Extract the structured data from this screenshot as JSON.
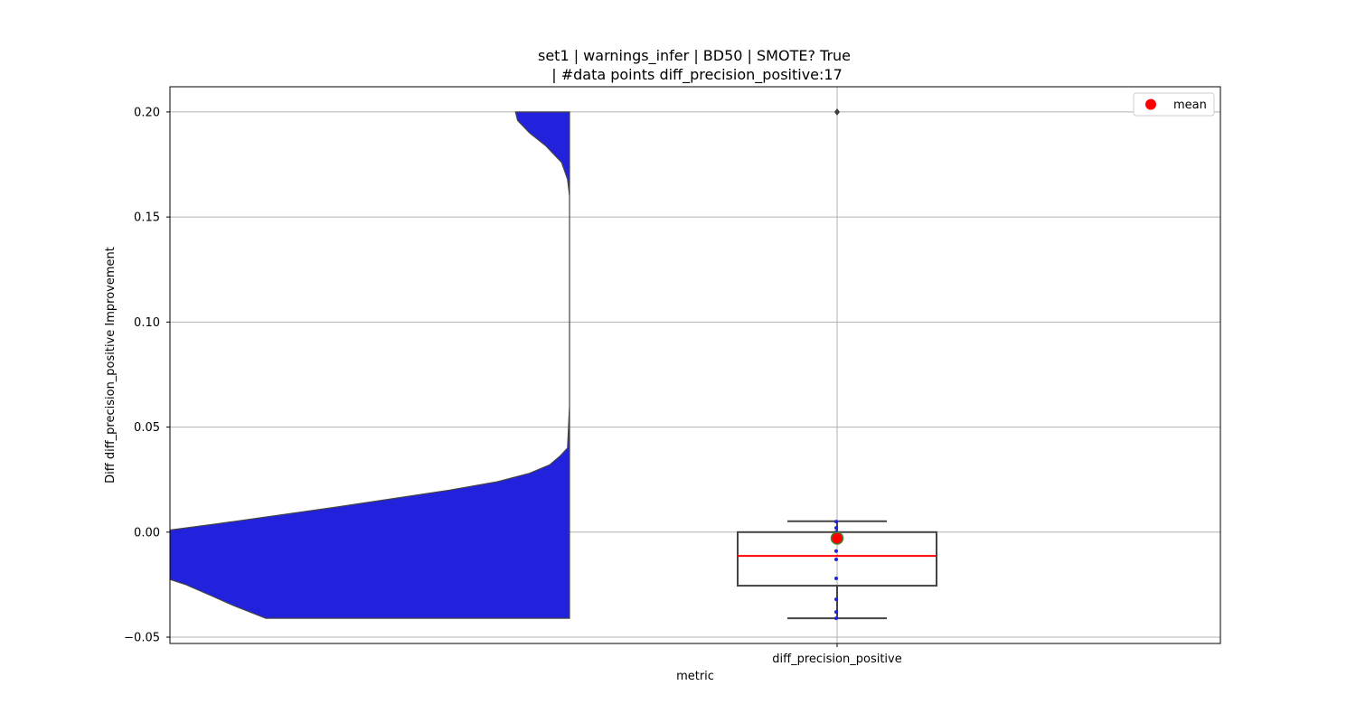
{
  "chart_data": {
    "type": "violin+box",
    "title_line1": "set1 | warnings_infer | BD50 | SMOTE? True",
    "title_line2": "| #data points diff_precision_positive:17",
    "xlabel": "metric",
    "ylabel": "Diff diff_precision_positive Improvement",
    "categories": [
      "diff_precision_positive"
    ],
    "ylim": [
      -0.053,
      0.212
    ],
    "yticks": [
      -0.05,
      0.0,
      0.05,
      0.1,
      0.15,
      0.2
    ],
    "ytick_labels": [
      "−0.05",
      "0.00",
      "0.05",
      "0.10",
      "0.15",
      "0.20"
    ],
    "grid": true,
    "legend": {
      "placement": "top-right",
      "entries": [
        "mean"
      ]
    },
    "violin": {
      "color": "#2222dd",
      "profile": [
        [
          -0.041,
          0.76
        ],
        [
          -0.035,
          0.84
        ],
        [
          -0.03,
          0.9
        ],
        [
          -0.025,
          0.96
        ],
        [
          -0.0225,
          1.0
        ],
        [
          -0.015,
          1.0
        ],
        [
          -0.01,
          1.0
        ],
        [
          -0.005,
          1.0
        ],
        [
          0.0,
          1.0
        ],
        [
          0.001,
          1.0
        ],
        [
          0.004,
          0.88
        ],
        [
          0.008,
          0.73
        ],
        [
          0.012,
          0.58
        ],
        [
          0.016,
          0.44
        ],
        [
          0.02,
          0.3
        ],
        [
          0.024,
          0.18
        ],
        [
          0.028,
          0.1
        ],
        [
          0.032,
          0.05
        ],
        [
          0.036,
          0.025
        ],
        [
          0.04,
          0.005
        ],
        [
          0.06,
          0.0
        ],
        [
          0.16,
          0.0
        ],
        [
          0.168,
          0.005
        ],
        [
          0.176,
          0.02
        ],
        [
          0.184,
          0.06
        ],
        [
          0.19,
          0.1
        ],
        [
          0.196,
          0.13
        ],
        [
          0.2,
          0.135
        ]
      ]
    },
    "box": {
      "whisker_low": -0.041,
      "q1": -0.0255,
      "median": -0.0113,
      "q3": 0.0,
      "whisker_high": 0.0052,
      "mean": -0.0029,
      "outliers": [
        0.2
      ],
      "median_color": "#ff0000",
      "mean_color": "#ff0000"
    },
    "points": [
      0.005,
      0.002,
      0.0,
      -0.003,
      -0.009,
      -0.013,
      -0.022,
      -0.032,
      -0.038,
      -0.041
    ],
    "point_color": "#2222dd"
  }
}
